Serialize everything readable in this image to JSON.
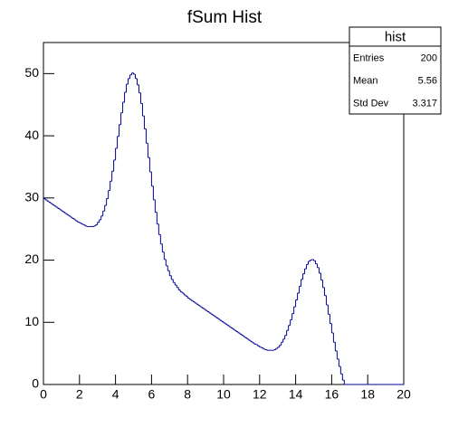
{
  "chart_data": {
    "type": "histogram",
    "title": "fSum Hist",
    "color": "#000099",
    "bins": [
      0,
      0.1,
      0.2,
      0.3,
      0.4,
      0.5,
      0.6,
      0.7,
      0.8,
      0.9,
      1,
      1.1,
      1.2,
      1.3,
      1.4,
      1.5,
      1.6,
      1.7,
      1.8,
      1.9,
      2,
      2.1,
      2.2,
      2.3,
      2.4,
      2.5,
      2.6,
      2.7,
      2.8,
      2.9,
      3,
      3.1,
      3.2,
      3.3,
      3.4,
      3.5,
      3.6,
      3.7,
      3.8,
      3.9,
      4,
      4.1,
      4.2,
      4.3,
      4.4,
      4.5,
      4.6,
      4.7,
      4.8,
      4.9,
      5,
      5.1,
      5.2,
      5.3,
      5.4,
      5.5,
      5.6,
      5.7,
      5.8,
      5.9,
      6,
      6.1,
      6.2,
      6.3,
      6.4,
      6.5,
      6.6,
      6.7,
      6.8,
      6.9,
      7,
      7.1,
      7.2,
      7.3,
      7.4,
      7.5,
      7.6,
      7.7,
      7.8,
      7.9,
      8,
      8.1,
      8.2,
      8.3,
      8.4,
      8.5,
      8.6,
      8.7,
      8.8,
      8.9,
      9,
      9.1,
      9.2,
      9.3,
      9.4,
      9.5,
      9.6,
      9.7,
      9.8,
      9.9,
      10,
      10.1,
      10.2,
      10.3,
      10.4,
      10.5,
      10.6,
      10.7,
      10.8,
      10.9,
      11,
      11.1,
      11.2,
      11.3,
      11.4,
      11.5,
      11.6,
      11.7,
      11.8,
      11.9,
      12,
      12.1,
      12.2,
      12.3,
      12.4,
      12.5,
      12.6,
      12.7,
      12.8,
      12.9,
      13,
      13.1,
      13.2,
      13.3,
      13.4,
      13.5,
      13.6,
      13.7,
      13.8,
      13.9,
      14,
      14.1,
      14.2,
      14.3,
      14.4,
      14.5,
      14.6,
      14.7,
      14.8,
      14.9,
      15,
      15.1,
      15.2,
      15.3,
      15.4,
      15.5,
      15.6,
      15.7,
      15.8,
      15.9,
      16,
      16.1,
      16.2,
      16.3,
      16.4,
      16.5,
      16.6,
      16.7,
      16.8,
      16.9,
      17,
      17.1,
      17.2,
      17.3,
      17.4,
      17.5,
      17.6,
      17.7,
      17.8,
      17.9,
      18,
      18.1,
      18.2,
      18.3,
      18.4,
      18.5,
      18.6,
      18.7,
      18.8,
      18.9,
      19,
      19.1,
      19.2,
      19.3,
      19.4,
      19.5,
      19.6,
      19.7,
      19.8,
      19.9,
      20
    ],
    "values": [
      29.9,
      29.7,
      29.5,
      29.3,
      29.1,
      28.9,
      28.7,
      28.5,
      28.3,
      28.1,
      27.9,
      27.7,
      27.5,
      27.3,
      27.1,
      26.9,
      26.7,
      26.5,
      26.3,
      26.1,
      26.0,
      25.8,
      25.7,
      25.5,
      25.4,
      25.4,
      25.4,
      25.4,
      25.5,
      25.7,
      26.1,
      26.5,
      27.1,
      27.9,
      28.8,
      29.9,
      31.2,
      32.7,
      34.3,
      36.1,
      38.0,
      39.9,
      41.8,
      43.7,
      45.4,
      47.0,
      48.3,
      49.2,
      49.8,
      50.1,
      49.9,
      49.2,
      48.2,
      46.9,
      45.2,
      43.2,
      41.1,
      38.8,
      36.5,
      34.2,
      31.9,
      29.7,
      27.7,
      25.8,
      24.1,
      22.6,
      21.3,
      20.1,
      19.1,
      18.3,
      17.5,
      16.9,
      16.4,
      16.0,
      15.6,
      15.2,
      14.9,
      14.7,
      14.4,
      14.2,
      13.9,
      13.7,
      13.5,
      13.3,
      13.1,
      12.9,
      12.7,
      12.5,
      12.3,
      12.1,
      11.9,
      11.7,
      11.5,
      11.3,
      11.1,
      10.9,
      10.7,
      10.5,
      10.3,
      10.1,
      9.9,
      9.7,
      9.5,
      9.3,
      9.1,
      8.9,
      8.7,
      8.5,
      8.3,
      8.1,
      7.9,
      7.7,
      7.5,
      7.3,
      7.1,
      6.9,
      6.7,
      6.5,
      6.4,
      6.2,
      6.0,
      5.9,
      5.7,
      5.6,
      5.5,
      5.5,
      5.5,
      5.5,
      5.6,
      5.8,
      6.0,
      6.3,
      6.8,
      7.3,
      7.9,
      8.7,
      9.5,
      10.4,
      11.4,
      12.5,
      13.6,
      14.7,
      15.8,
      16.9,
      17.8,
      18.6,
      19.3,
      19.8,
      20.0,
      20.1,
      19.9,
      19.4,
      18.8,
      17.9,
      16.8,
      15.6,
      14.3,
      12.8,
      11.3,
      9.8,
      8.3,
      6.8,
      5.4,
      4.1,
      2.9,
      1.7,
      0.7,
      0,
      0,
      0,
      0,
      0,
      0,
      0,
      0,
      0,
      0,
      0,
      0,
      0,
      0,
      0,
      0,
      0,
      0,
      0,
      0,
      0,
      0,
      0,
      0,
      0,
      0,
      0,
      0,
      0,
      0,
      0,
      0,
      0
    ],
    "xlim": [
      0,
      20
    ],
    "xticks": [
      0,
      2,
      4,
      6,
      8,
      10,
      12,
      14,
      16,
      18,
      20
    ],
    "ylim": [
      0,
      55
    ],
    "yticks": [
      0,
      10,
      20,
      30,
      40,
      50
    ],
    "stats": {
      "title": "hist",
      "names": [
        "Entries",
        "Mean",
        "Std Dev"
      ],
      "values": [
        200,
        5.56,
        3.317
      ]
    }
  }
}
